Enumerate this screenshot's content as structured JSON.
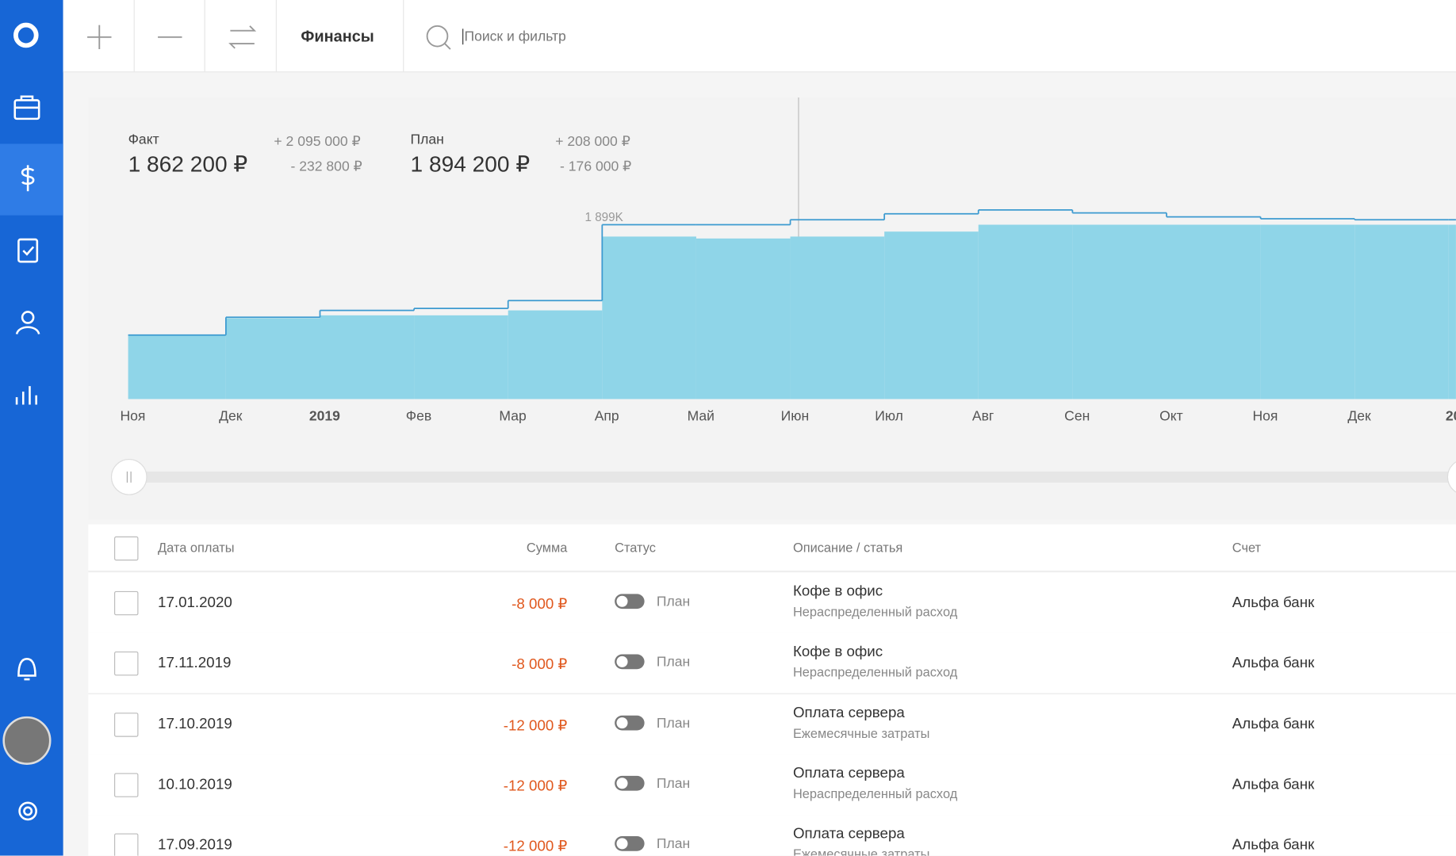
{
  "toolbar": {
    "section": "Финансы",
    "search_placeholder": "Поиск и фильтр"
  },
  "summary": {
    "fact_label": "Факт",
    "fact_value": "1 862 200 ₽",
    "fact_plus": "+ 2 095 000 ₽",
    "fact_minus": "- 232 800 ₽",
    "plan_label": "План",
    "plan_value": "1 894 200 ₽",
    "plan_plus": "+ 208 000 ₽",
    "plan_minus": "- 176 000 ₽"
  },
  "chart_data": {
    "type": "step-area",
    "annotation": "1 899K",
    "categories": [
      "Ноя",
      "Дек",
      "2019",
      "Фев",
      "Мар",
      "Апр",
      "Май",
      "Июн",
      "Июл",
      "Авг",
      "Сен",
      "Окт",
      "Ноя",
      "Дек",
      "20"
    ],
    "series": [
      {
        "name": "Факт",
        "color": "#8fd5e8",
        "values": [
          660,
          833,
          863,
          863,
          914,
          1675,
          1655,
          1675,
          1726,
          1797,
          1797,
          1797,
          1797,
          1797,
          1797
        ]
      },
      {
        "name": "План",
        "color": "#3c9ad0",
        "values": [
          660,
          843,
          914,
          934,
          1015,
          1797,
          1797,
          1848,
          1909,
          1949,
          1919,
          1878,
          1858,
          1848,
          1848
        ]
      }
    ],
    "ylim": [
      0,
      2200
    ]
  },
  "table": {
    "headers": [
      "Дата оплаты",
      "Сумма",
      "Статус",
      "Описание / статья",
      "Счет"
    ],
    "rows": [
      [
        "17.01.2020",
        "-8 000 ₽",
        "План",
        "Кофе в офис",
        "Нераспределенный расход",
        "Альфа банк"
      ],
      [
        "17.11.2019",
        "-8 000 ₽",
        "План",
        "Кофе в офис",
        "Нераспределенный расход",
        "Альфа банк"
      ],
      [
        "17.10.2019",
        "-12 000 ₽",
        "План",
        "Оплата сервера",
        "Ежемесячные затраты",
        "Альфа банк"
      ],
      [
        "10.10.2019",
        "-12 000 ₽",
        "План",
        "Оплата сервера",
        "Нераспределенный расход",
        "Альфа банк"
      ],
      [
        "17.09.2019",
        "-12 000 ₽",
        "План",
        "Оплата сервера",
        "Ежемесячные затраты",
        "Альфа банк"
      ]
    ]
  }
}
